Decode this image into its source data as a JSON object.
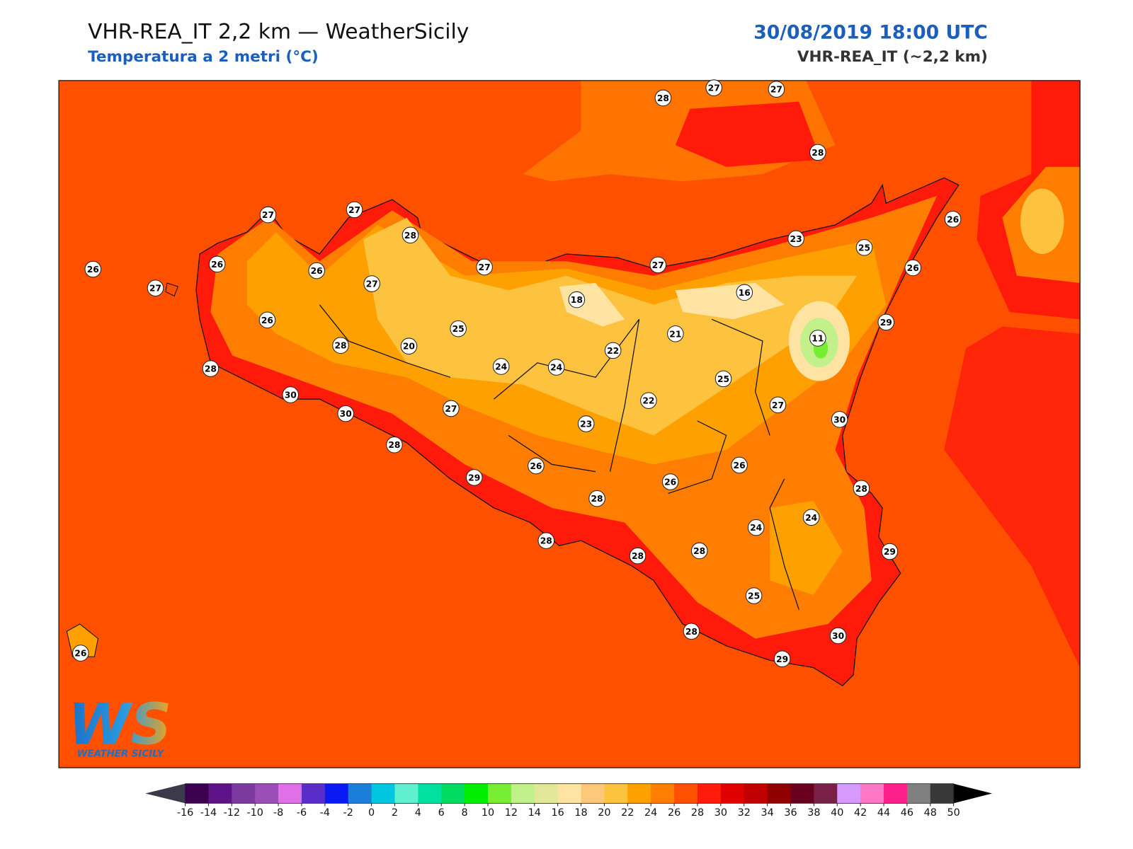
{
  "header": {
    "title": "VHR-REA_IT 2,2 km — WeatherSicily",
    "subtitle": "Temperatura a 2 metri (°C)",
    "datetime": "30/08/2019 18:00 UTC",
    "model": "VHR-REA_IT (~2,2 km)"
  },
  "stations": [
    28,
    27,
    27,
    28,
    27,
    27,
    28,
    26,
    23,
    25,
    26,
    26,
    26,
    27,
    27,
    26,
    27,
    27,
    18,
    16,
    26,
    25,
    21,
    29,
    11,
    28,
    20,
    22,
    24,
    24,
    28,
    25,
    30,
    22,
    27,
    30,
    27,
    30,
    23,
    28,
    26,
    26,
    29,
    26,
    28,
    28,
    24,
    24,
    28,
    28,
    29,
    28,
    25,
    28,
    30,
    29,
    26
  ],
  "colorbar": {
    "ticks": [
      -16,
      -14,
      -12,
      -10,
      -8,
      -6,
      -4,
      -2,
      0,
      2,
      4,
      6,
      8,
      10,
      12,
      14,
      16,
      18,
      20,
      22,
      24,
      26,
      28,
      30,
      32,
      34,
      36,
      38,
      40,
      42,
      44,
      46,
      48,
      50
    ],
    "colors": [
      "#3b0050",
      "#5e1488",
      "#7c3aa0",
      "#9b4eb8",
      "#e070e8",
      "#5b2dc8",
      "#0a1af5",
      "#1a7fd8",
      "#00c6e0",
      "#60f0d0",
      "#00e0a0",
      "#00dc60",
      "#00ee00",
      "#77ee33",
      "#c2f08a",
      "#e2e898",
      "#fee3a3",
      "#fdc87a",
      "#fdc23e",
      "#fda000",
      "#ff7d00",
      "#ff5000",
      "#ff1a0a",
      "#e00000",
      "#c00000",
      "#900000",
      "#6a0020",
      "#7a2048",
      "#d69aff",
      "#ff78c8",
      "#ff1f8c",
      "#808080",
      "#383838"
    ],
    "under_color": "#3a3a4a",
    "over_color": "#000000"
  },
  "logo": {
    "mark": "WS",
    "text": "WEATHER SICILY"
  }
}
